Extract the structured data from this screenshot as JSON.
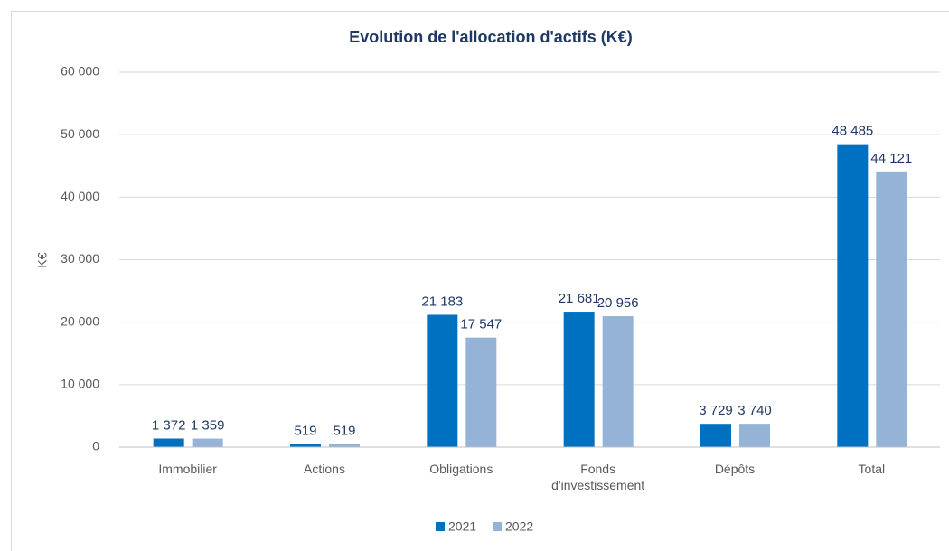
{
  "chart_data": {
    "type": "bar",
    "title": "Evolution de l'allocation d'actifs (K€)",
    "y_label": "K€",
    "categories": [
      "Immobilier",
      "Actions",
      "Obligations",
      "Fonds d'investissement",
      "Dépôts",
      "Total"
    ],
    "series": [
      {
        "name": "2021",
        "color": "#0070c0",
        "values": [
          1372,
          519,
          21183,
          21681,
          3729,
          48485
        ],
        "value_labels": [
          "1 372",
          "519",
          "21 183",
          "21 681",
          "3 729",
          "48 485"
        ]
      },
      {
        "name": "2022",
        "color": "#95b3d7",
        "values": [
          1359,
          519,
          17547,
          20956,
          3740,
          44121
        ],
        "value_labels": [
          "1 359",
          "519",
          "17 547",
          "20 956",
          "3 740",
          "44 121"
        ]
      }
    ],
    "ylim": [
      0,
      60000
    ],
    "yticks": [
      {
        "value": 0,
        "label": "0"
      },
      {
        "value": 10000,
        "label": "10 000"
      },
      {
        "value": 20000,
        "label": "20 000"
      },
      {
        "value": 30000,
        "label": "30 000"
      },
      {
        "value": 40000,
        "label": "40 000"
      },
      {
        "value": 50000,
        "label": "50 000"
      },
      {
        "value": 60000,
        "label": "60 000"
      }
    ],
    "grid": true
  }
}
